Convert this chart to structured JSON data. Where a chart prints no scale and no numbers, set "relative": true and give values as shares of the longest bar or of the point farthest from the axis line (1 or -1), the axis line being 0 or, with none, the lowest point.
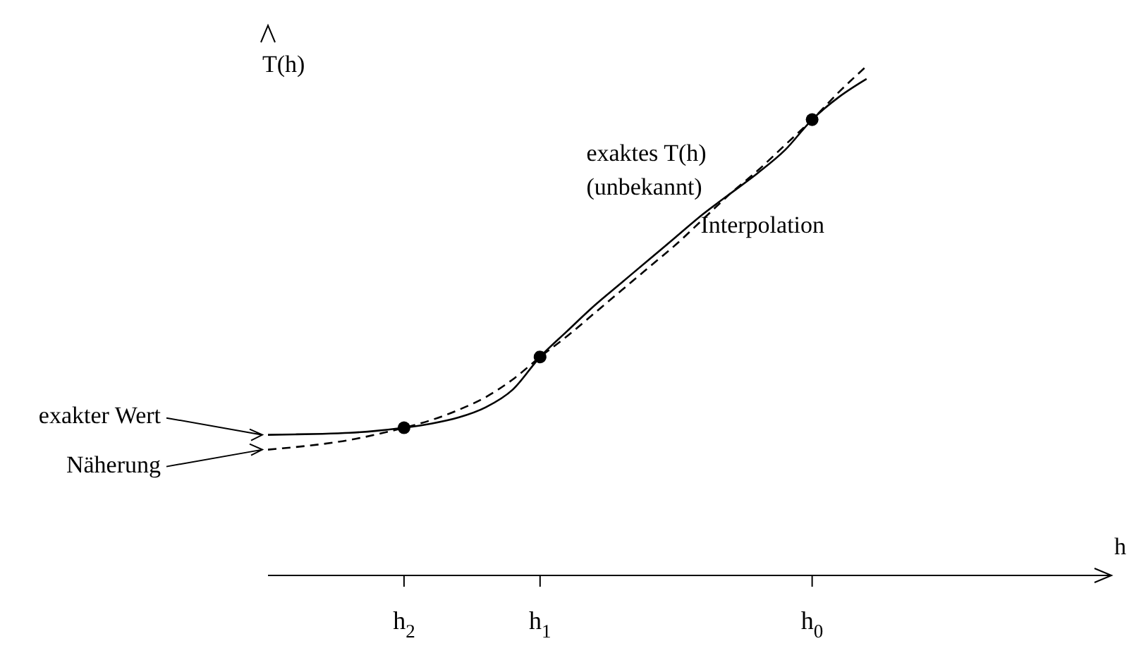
{
  "chart_data": {
    "type": "line",
    "relative": true,
    "xlabel": "h",
    "ylabel": "T(h)",
    "categories": [
      null,
      null,
      null,
      null,
      null,
      "h$_{2}$",
      null,
      null,
      null,
      null,
      "h$_{1}$",
      null,
      null,
      null,
      null,
      null,
      null,
      null,
      null,
      null,
      "h$_{0}$",
      null,
      null,
      null,
      null,
      null,
      null,
      null,
      null,
      null,
      null,
      null
    ],
    "series": [
      {
        "name": "exaktes T(h) (unbekannt)",
        "line_style": "solid",
        "marker": "none",
        "color": "#000000",
        "values": [
          0.276,
          0.277,
          0.278,
          0.28,
          0.284,
          0.29,
          0.298,
          0.31,
          0.33,
          0.365,
          0.429,
          0.48,
          0.53,
          0.575,
          0.62,
          0.665,
          0.71,
          0.75,
          0.79,
          0.835,
          0.895,
          0.94,
          0.975,
          null,
          null,
          null,
          null,
          null,
          null,
          null,
          null,
          null
        ]
      },
      {
        "name": "Interpolation",
        "line_style": "dashed",
        "marker": "none",
        "color": "#000000",
        "values": [
          0.247,
          0.252,
          0.258,
          0.266,
          0.277,
          0.29,
          0.305,
          0.325,
          0.35,
          0.385,
          0.429,
          0.47,
          0.515,
          0.56,
          0.605,
          0.65,
          0.7,
          0.75,
          0.795,
          0.845,
          0.895,
          0.95,
          1.0,
          null,
          null,
          null,
          null,
          null,
          null,
          null,
          null,
          null
        ]
      },
      {
        "type": "scatter",
        "marker": "circle",
        "color": "#000000",
        "values": [
          null,
          null,
          null,
          null,
          null,
          0.29,
          null,
          null,
          null,
          null,
          0.429,
          null,
          null,
          null,
          null,
          null,
          null,
          null,
          null,
          null,
          0.895,
          null,
          null,
          null,
          null,
          null,
          null,
          null,
          null,
          null,
          null,
          null
        ]
      }
    ],
    "annotations": [
      "exakter Wert",
      "Näherung"
    ]
  }
}
